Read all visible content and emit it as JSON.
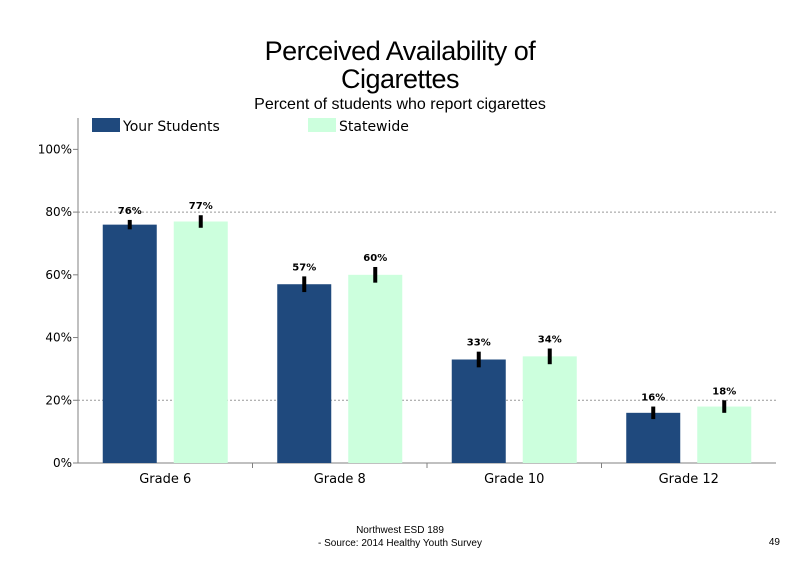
{
  "chart_data": {
    "type": "bar",
    "title_line1": "Perceived Availability of",
    "title_line2": "Cigarettes",
    "subtitle": "Percent of students who report cigarettes",
    "categories": [
      "Grade 6",
      "Grade 8",
      "Grade 10",
      "Grade 12"
    ],
    "series": [
      {
        "name": "Your Students",
        "color": "#1f497d",
        "values": [
          76,
          57,
          33,
          16
        ],
        "labels": [
          "76%",
          "57%",
          "33%",
          "16%"
        ],
        "error": [
          1.5,
          2.5,
          2.5,
          2.0
        ]
      },
      {
        "name": "Statewide",
        "color": "#ccffdd",
        "values": [
          77,
          60,
          34,
          18
        ],
        "labels": [
          "77%",
          "60%",
          "34%",
          "18%"
        ],
        "error": [
          2.0,
          2.5,
          2.5,
          2.0
        ]
      }
    ],
    "ylim": [
      0,
      110
    ],
    "yticks": [
      0,
      20,
      40,
      60,
      80,
      100
    ],
    "ytick_labels": [
      "0%",
      "20%",
      "40%",
      "60%",
      "80%",
      "100%"
    ],
    "gridlines": [
      20,
      80
    ],
    "legend": "top-left"
  },
  "footer": {
    "line1": "Northwest ESD  189",
    "line2": "- Source: 2014 Healthy  Youth Survey",
    "page_number": "49"
  }
}
